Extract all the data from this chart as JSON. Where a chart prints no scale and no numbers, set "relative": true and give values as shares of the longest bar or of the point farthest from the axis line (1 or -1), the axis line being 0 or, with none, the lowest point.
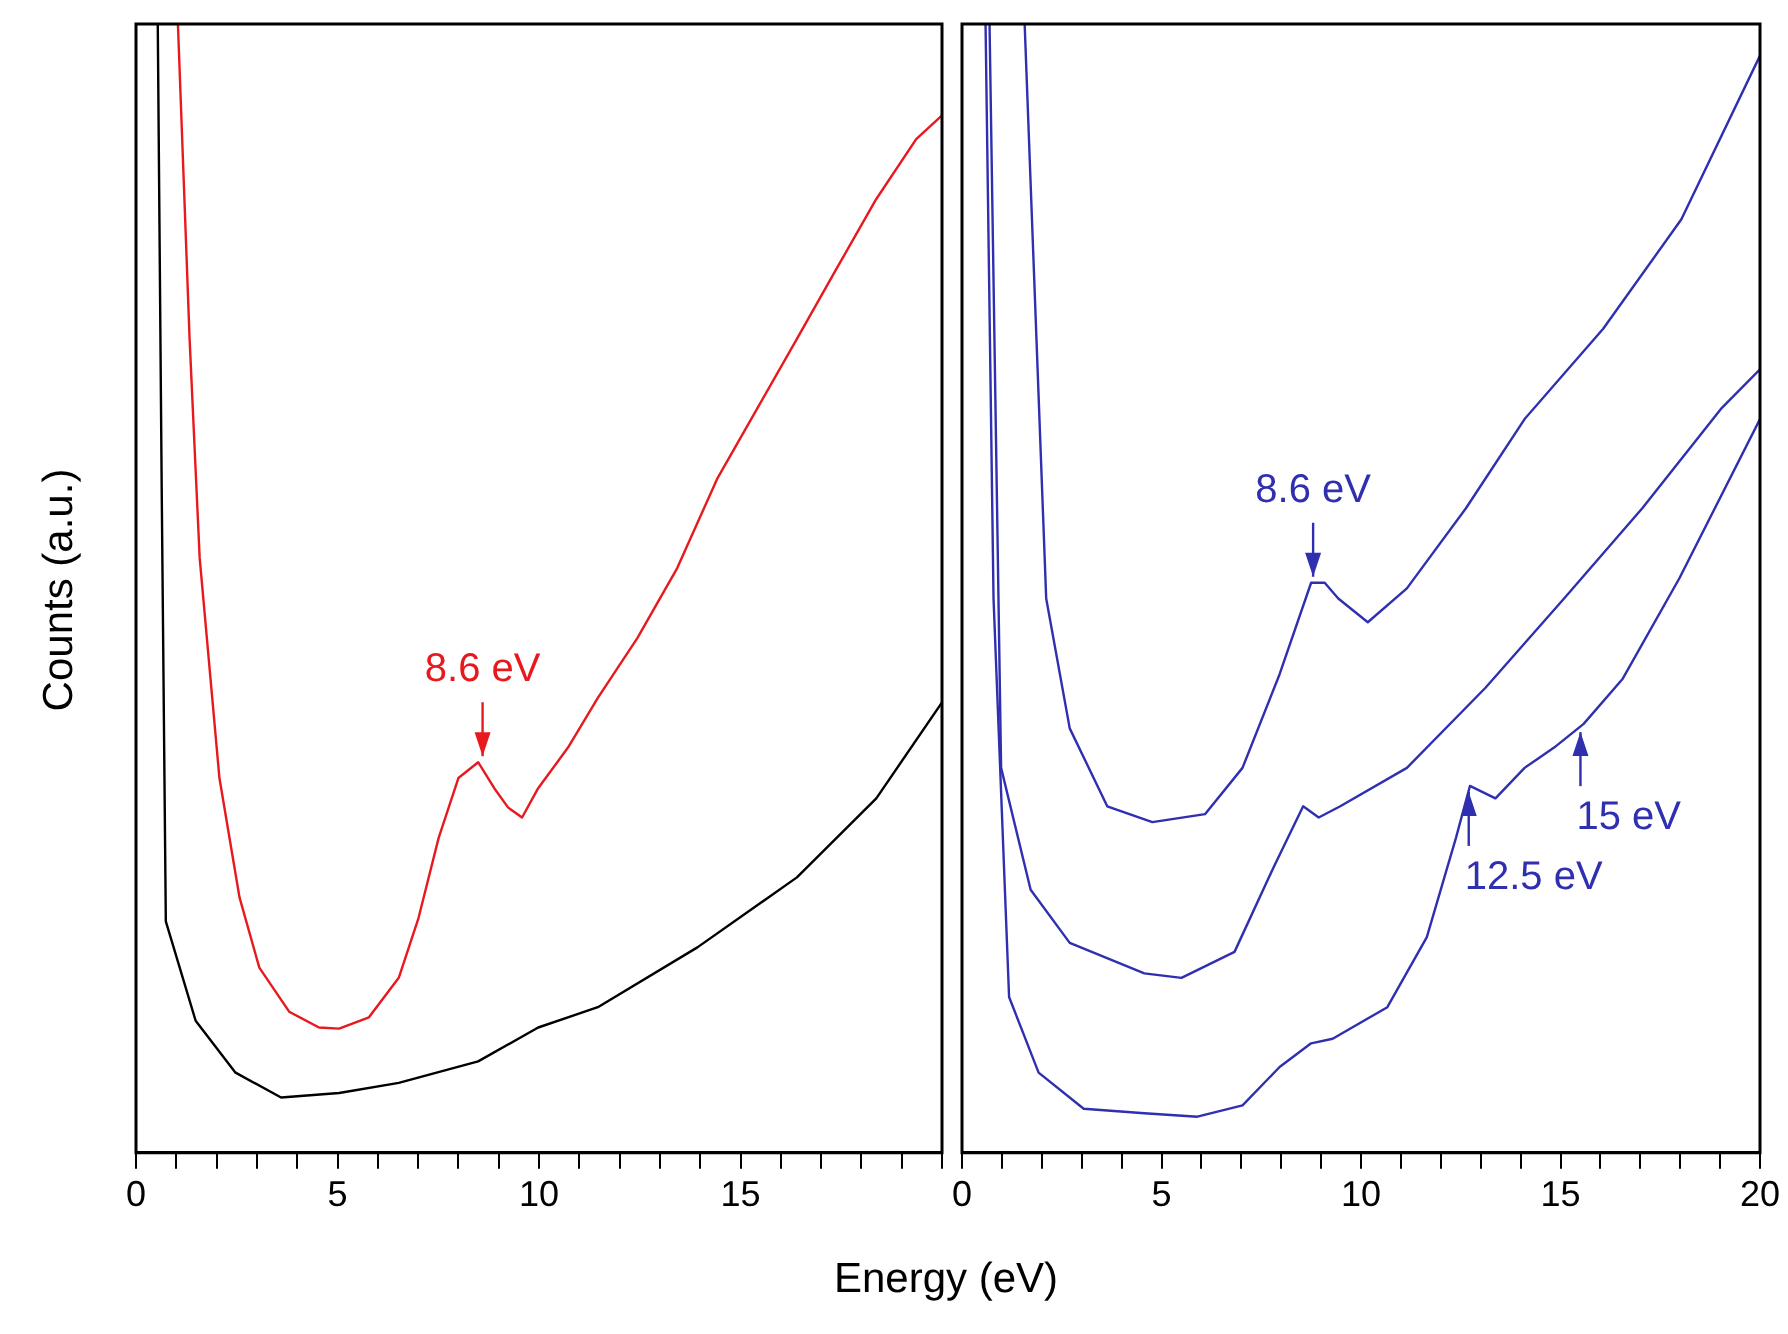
{
  "chart_data": [
    {
      "type": "line",
      "relative": true,
      "xlabel": "Energy (eV)",
      "ylabel": "Counts (a.u.)",
      "xlim": [
        0,
        20
      ],
      "xticks": [
        0,
        {
          "value": 1,
          "label": null
        },
        {
          "value": 2,
          "label": null
        },
        {
          "value": 3,
          "label": null
        },
        {
          "value": 4,
          "label": null
        },
        5,
        {
          "value": 6,
          "label": null
        },
        {
          "value": 7,
          "label": null
        },
        {
          "value": 8,
          "label": null
        },
        {
          "value": 9,
          "label": null
        },
        10,
        {
          "value": 11,
          "label": null
        },
        {
          "value": 12,
          "label": null
        },
        {
          "value": 13,
          "label": null
        },
        {
          "value": 14,
          "label": null
        },
        15,
        {
          "value": 16,
          "label": null
        },
        {
          "value": 17,
          "label": null
        },
        {
          "value": 18,
          "label": null
        },
        {
          "value": 19,
          "label": null
        },
        {
          "value": 20,
          "label": null
        }
      ],
      "tick_labels": "x",
      "grid": false,
      "legend": false,
      "marker": "none",
      "line_style": "solid",
      "series": [
        {
          "color": "#e8191e",
          "x": [
            1.04,
            1.33,
            1.58,
            2.07,
            2.57,
            3.06,
            3.8,
            4.54,
            5.04,
            5.78,
            6.52,
            7.01,
            7.51,
            8.0,
            8.49,
            8.89,
            9.23,
            9.58,
            9.98,
            10.72,
            11.46,
            12.44,
            13.43,
            14.42,
            15.41,
            16.4,
            17.38,
            18.37,
            19.36,
            20
          ],
          "values": [
            1.0,
            0.721,
            0.527,
            0.332,
            0.226,
            0.164,
            0.125,
            0.111,
            0.11,
            0.12,
            0.155,
            0.208,
            0.279,
            0.332,
            0.346,
            0.323,
            0.306,
            0.297,
            0.323,
            0.359,
            0.403,
            0.456,
            0.518,
            0.597,
            0.659,
            0.721,
            0.783,
            0.845,
            0.898,
            0.919
          ]
        },
        {
          "color": "#000000",
          "x": [
            0.54,
            0.64,
            0.74,
            1.48,
            2.47,
            3.6,
            5.04,
            6.52,
            8.49,
            9.98,
            11.46,
            13.93,
            16.4,
            18.37,
            20
          ],
          "values": [
            1.0,
            0.58,
            0.205,
            0.117,
            0.071,
            0.049,
            0.053,
            0.062,
            0.081,
            0.111,
            0.129,
            0.182,
            0.244,
            0.314,
            0.399
          ]
        }
      ],
      "annotations": [
        {
          "text": "8.6 eV",
          "x": 8.6,
          "y": 0.346
        }
      ]
    },
    {
      "type": "line",
      "relative": true,
      "xlim": [
        0,
        20
      ],
      "xticks": [
        0,
        {
          "value": 1,
          "label": null
        },
        {
          "value": 2,
          "label": null
        },
        {
          "value": 3,
          "label": null
        },
        {
          "value": 4,
          "label": null
        },
        5,
        {
          "value": 6,
          "label": null
        },
        {
          "value": 7,
          "label": null
        },
        {
          "value": 8,
          "label": null
        },
        {
          "value": 9,
          "label": null
        },
        10,
        {
          "value": 11,
          "label": null
        },
        {
          "value": 12,
          "label": null
        },
        {
          "value": 13,
          "label": null
        },
        {
          "value": 14,
          "label": null
        },
        15,
        {
          "value": 16,
          "label": null
        },
        {
          "value": 17,
          "label": null
        },
        {
          "value": 18,
          "label": null
        },
        {
          "value": 19,
          "label": null
        },
        20
      ],
      "tick_labels": "x",
      "grid": false,
      "legend": false,
      "marker": "none",
      "line_style": "solid",
      "series": [
        {
          "color": "#2f2fb0",
          "x": [
            1.57,
            2.11,
            2.7,
            3.64,
            4.77,
            6.09,
            7.03,
            7.96,
            8.75,
            9.09,
            9.43,
            10.17,
            11.15,
            12.63,
            14.1,
            16.07,
            18.03,
            20
          ],
          "values": [
            1.0,
            0.491,
            0.376,
            0.307,
            0.293,
            0.3,
            0.341,
            0.424,
            0.505,
            0.505,
            0.491,
            0.47,
            0.5,
            0.571,
            0.65,
            0.73,
            0.827,
            0.972
          ]
        },
        {
          "color": "#2f2fb0",
          "x": [
            0.69,
            0.98,
            1.72,
            2.7,
            4.57,
            5.5,
            6.83,
            7.81,
            8.55,
            8.94,
            9.48,
            11.15,
            13.12,
            15.09,
            17.05,
            19.02,
            20
          ],
          "values": [
            1.0,
            0.341,
            0.233,
            0.186,
            0.159,
            0.155,
            0.178,
            0.253,
            0.307,
            0.297,
            0.307,
            0.341,
            0.412,
            0.491,
            0.571,
            0.659,
            0.694
          ]
        },
        {
          "color": "#2f2fb0",
          "x": [
            0.59,
            0.79,
            1.18,
            1.92,
            3.05,
            4.57,
            5.9,
            7.03,
            7.96,
            8.75,
            9.29,
            10.66,
            11.65,
            12.38,
            12.73,
            13.37,
            14.1,
            14.84,
            15.58,
            16.56,
            17.98,
            20
          ],
          "values": [
            1.0,
            0.491,
            0.138,
            0.071,
            0.039,
            0.035,
            0.032,
            0.042,
            0.076,
            0.097,
            0.101,
            0.129,
            0.191,
            0.279,
            0.325,
            0.314,
            0.341,
            0.359,
            0.38,
            0.42,
            0.509,
            0.65
          ]
        }
      ],
      "annotations": [
        {
          "text": "8.6 eV",
          "x": 8.8,
          "y": 0.505
        },
        {
          "text": "12.5 eV",
          "x": 12.7,
          "y": 0.325
        },
        {
          "text": "15 eV",
          "x": 15.5,
          "y": 0.378
        }
      ]
    }
  ]
}
